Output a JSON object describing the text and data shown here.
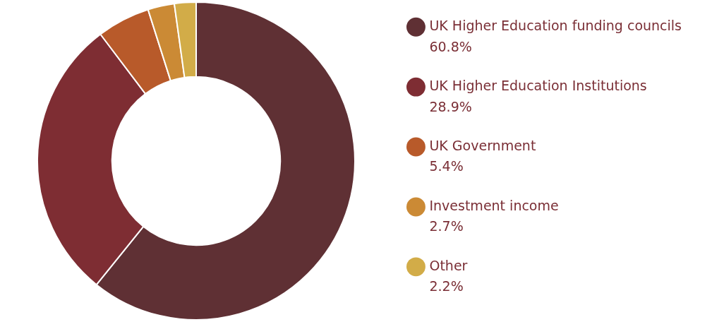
{
  "chart_data": {
    "type": "donut",
    "categories": [
      "UK Higher Education funding councils",
      "UK Higher Education Institutions",
      "UK Government",
      "Investment income",
      "Other"
    ],
    "values": [
      60.8,
      28.9,
      5.4,
      2.7,
      2.2
    ],
    "value_labels": [
      "60.8%",
      "28.9%",
      "5.4%",
      "2.7%",
      "2.2%"
    ],
    "colors": [
      "#5f3034",
      "#7e2d33",
      "#b85a2a",
      "#cb8a35",
      "#d2ac48"
    ],
    "legend": "right"
  }
}
